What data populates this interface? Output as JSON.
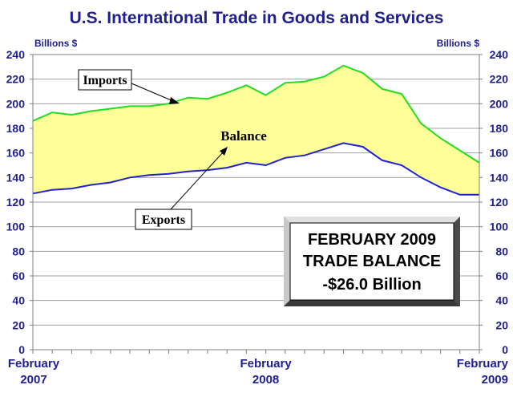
{
  "chart_data": {
    "type": "area",
    "title": "U.S. International Trade in Goods and Services",
    "left_unit_label": "Billions $",
    "right_unit_label": "Billions $",
    "ylim": [
      0,
      240
    ],
    "y_ticks": [
      "0",
      "20",
      "40",
      "60",
      "80",
      "100",
      "120",
      "140",
      "160",
      "180",
      "200",
      "220",
      "240"
    ],
    "x_tick_labels": [
      {
        "index": 0,
        "line1": "February",
        "line2": "2007"
      },
      {
        "index": 12,
        "line1": "February",
        "line2": "2008"
      },
      {
        "index": 24,
        "line1": "February",
        "line2": "2009"
      }
    ],
    "grid": "horizontal",
    "colors": {
      "imports": "#22dd22",
      "exports": "#2222cc",
      "balance_fill": "#ffff99",
      "axis_text": "#1f1f8f"
    },
    "series": [
      {
        "name": "Imports",
        "values": [
          186,
          193,
          191,
          194,
          196,
          198,
          198,
          200,
          205,
          204,
          209,
          215,
          207,
          217,
          218,
          222,
          231,
          225,
          212,
          208,
          184,
          172,
          162,
          152
        ]
      },
      {
        "name": "Exports",
        "values": [
          127,
          130,
          131,
          134,
          136,
          140,
          142,
          143,
          145,
          146,
          148,
          152,
          150,
          156,
          158,
          163,
          168,
          165,
          154,
          150,
          140,
          132,
          126,
          126
        ]
      }
    ],
    "annotations": {
      "imports_label": "Imports",
      "exports_label": "Exports",
      "balance_label": "Balance",
      "box_line1": "FEBRUARY 2009",
      "box_line2": "TRADE BALANCE",
      "box_line3": "-$26.0 Billion"
    }
  }
}
